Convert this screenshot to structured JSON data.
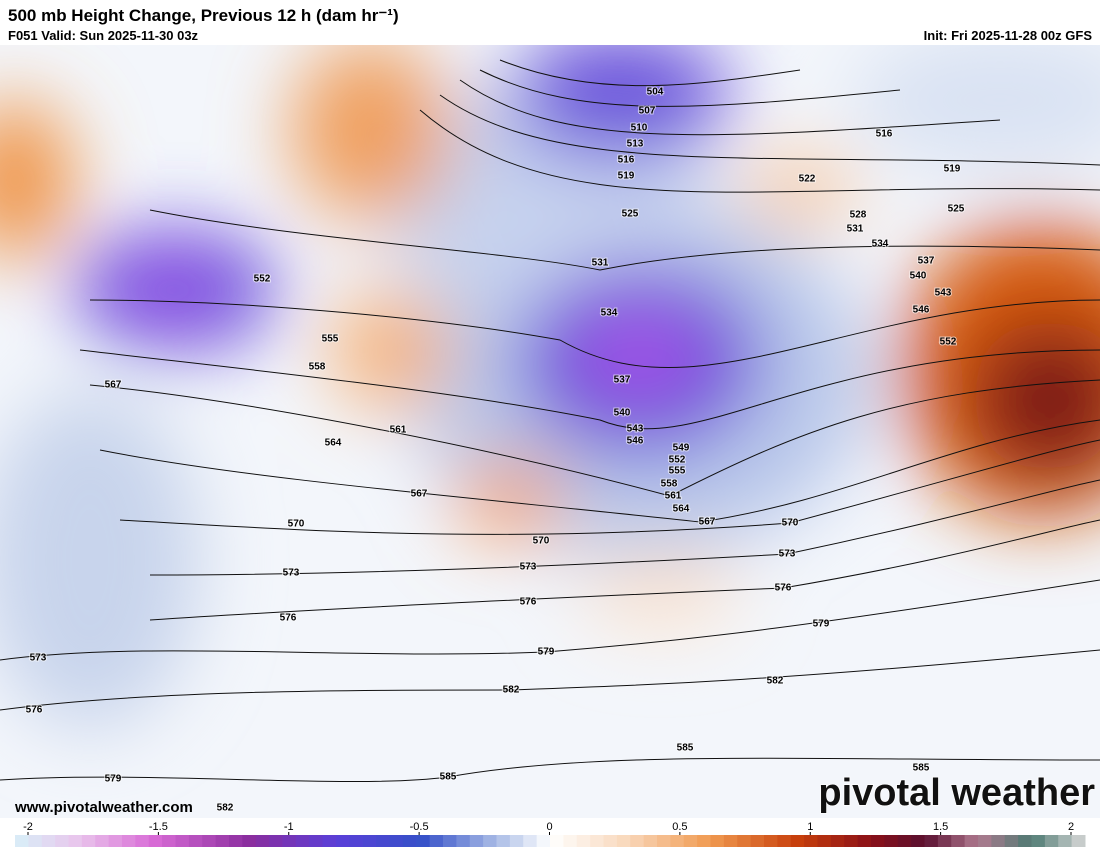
{
  "header": {
    "title": "500 mb Height Change, Previous 12 h (dam hr⁻¹)",
    "valid": "F051 Valid: Sun 2025-11-30 03z",
    "init": "Init: Fri 2025-11-28 00z GFS"
  },
  "map": {
    "contour_labels": [
      504,
      507,
      510,
      513,
      516,
      519,
      516,
      519,
      522,
      525,
      525,
      528,
      531,
      531,
      534,
      537,
      540,
      543,
      546,
      552,
      534,
      537,
      540,
      543,
      546,
      549,
      552,
      555,
      558,
      561,
      564,
      567,
      570,
      573,
      576,
      579,
      582,
      585,
      585,
      552,
      555,
      558,
      561,
      564,
      567,
      567,
      570,
      570,
      573,
      573,
      576,
      576,
      579,
      582,
      585,
      573,
      576,
      579,
      582
    ]
  },
  "colorbar": {
    "range": [
      -2,
      2
    ],
    "ticks": [
      -2,
      -1.5,
      -1,
      -0.5,
      0,
      0.5,
      1,
      1.5,
      2
    ]
  },
  "footer": {
    "website": "www.pivotalweather.com",
    "brand": "pivotal weather"
  }
}
